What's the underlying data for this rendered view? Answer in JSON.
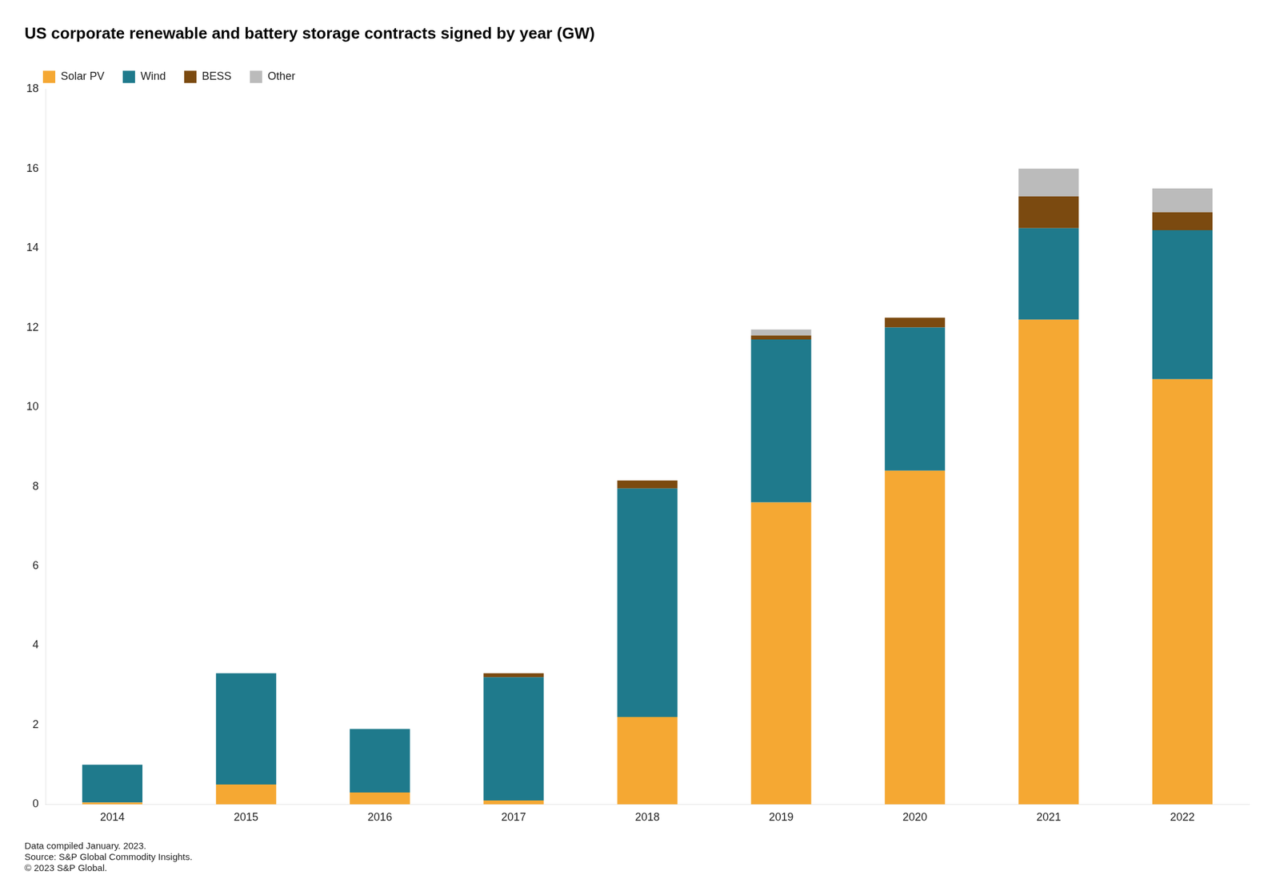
{
  "chart_data": {
    "type": "bar",
    "title": "US corporate renewable and battery storage contracts signed by year (GW)",
    "categories": [
      "2014",
      "2015",
      "2016",
      "2017",
      "2018",
      "2019",
      "2020",
      "2021",
      "2022"
    ],
    "series": [
      {
        "name": "Solar PV",
        "color": "#F5A833",
        "values": [
          0.05,
          0.5,
          0.3,
          0.1,
          2.2,
          7.6,
          8.4,
          12.2,
          10.7
        ]
      },
      {
        "name": "Wind",
        "color": "#1F7A8C",
        "values": [
          0.95,
          2.8,
          1.6,
          3.1,
          5.75,
          4.1,
          3.6,
          2.3,
          3.75
        ]
      },
      {
        "name": "BESS",
        "color": "#7B4A10",
        "values": [
          0.0,
          0.0,
          0.0,
          0.1,
          0.2,
          0.1,
          0.25,
          0.8,
          0.45
        ]
      },
      {
        "name": "Other",
        "color": "#BBBBBB",
        "values": [
          0.0,
          0.0,
          0.0,
          0.0,
          0.0,
          0.15,
          0.0,
          0.7,
          0.6
        ]
      }
    ],
    "stacked": true,
    "ylim": [
      0,
      18
    ],
    "yticks": [
      0,
      2,
      4,
      6,
      8,
      10,
      12,
      14,
      16,
      18
    ],
    "grid": false,
    "legend": "upper left",
    "annotations": [
      "Data compiled January. 2023.",
      "Source: S&P Global Commodity Insights.",
      "© 2023 S&P Global."
    ]
  }
}
